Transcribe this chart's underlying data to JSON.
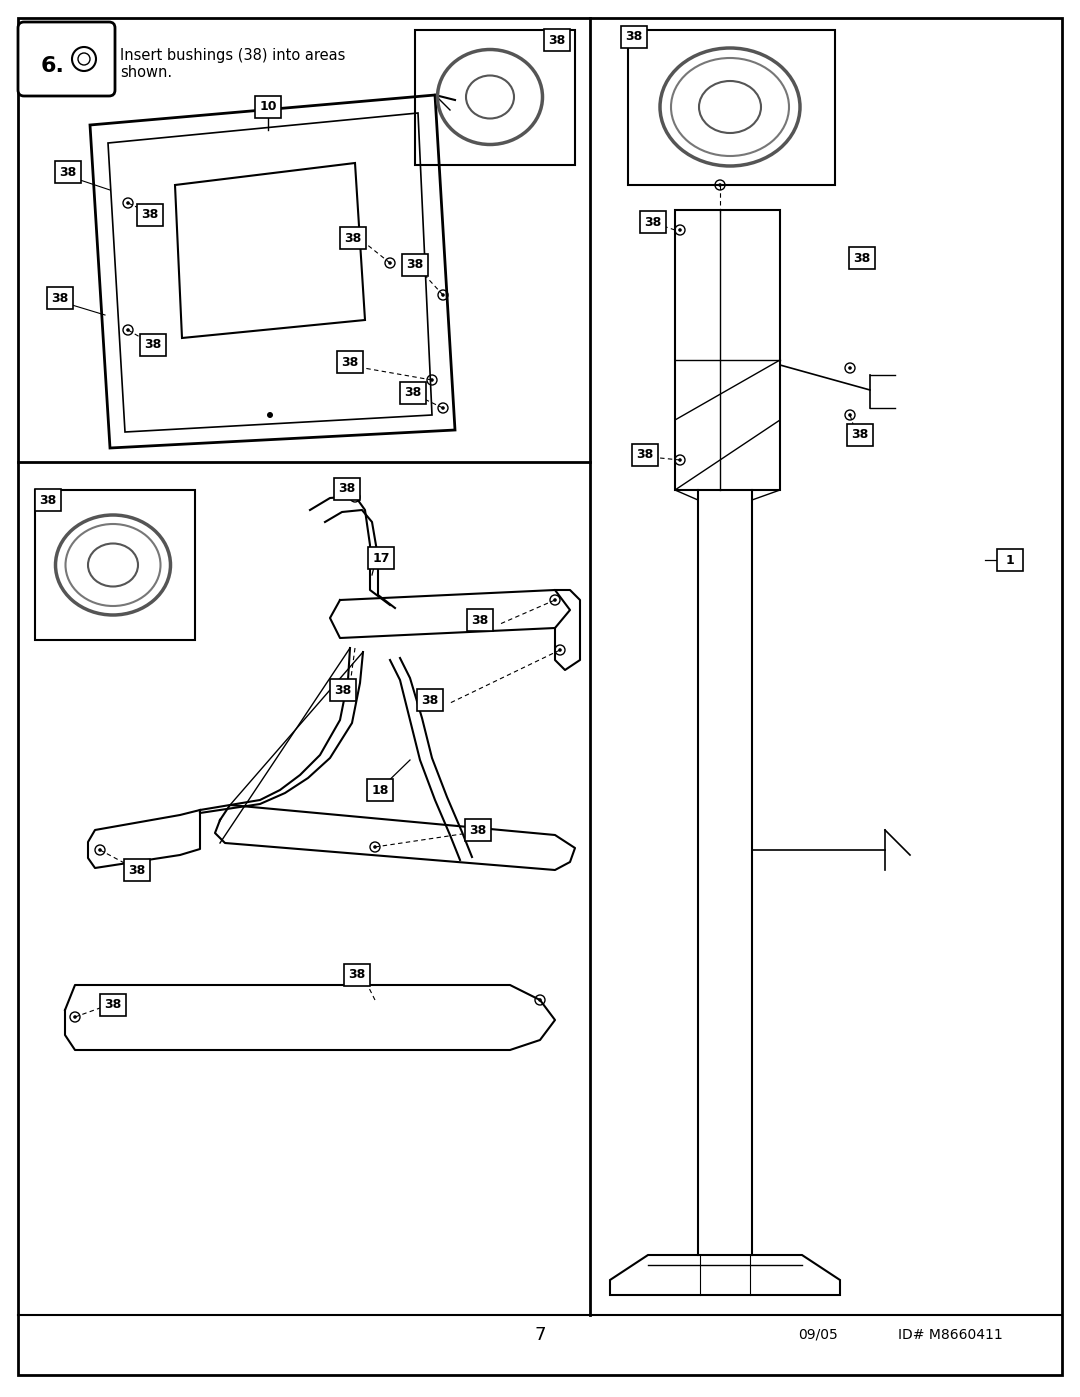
{
  "page_width": 10.8,
  "page_height": 13.97,
  "bg_color": "#ffffff",
  "title_text": "Insert bushings (38) into areas\nshown.",
  "step_number": "6.",
  "footer_page": "7",
  "footer_date": "09/05",
  "footer_id": "ID# M8660411",
  "label_38": "38",
  "label_17": "17",
  "label_18": "18",
  "label_10": "10",
  "label_1": "1"
}
